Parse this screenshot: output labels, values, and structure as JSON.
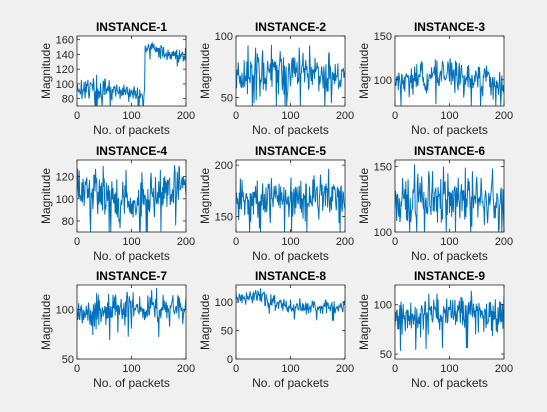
{
  "figure": {
    "background": "#f0f0f0",
    "axes_background": "#ffffff",
    "line_color": "#0072bd"
  },
  "chart_data": [
    {
      "type": "line",
      "title": "INSTANCE-1",
      "xlabel": "No. of packets",
      "ylabel": "Magnitude",
      "xlim": [
        0,
        200
      ],
      "ylim": [
        70,
        165
      ],
      "xticks": [
        0,
        100,
        200
      ],
      "yticks": [
        80,
        100,
        120,
        140,
        160
      ],
      "x_count": 201,
      "y_segments": [
        [
          0,
          95,
          18
        ],
        [
          30,
          93,
          18
        ],
        [
          60,
          90,
          16
        ],
        [
          90,
          88,
          15
        ],
        [
          120,
          82,
          14
        ],
        [
          130,
          150,
          10
        ],
        [
          160,
          142,
          10
        ],
        [
          200,
          138,
          10
        ]
      ]
    },
    {
      "type": "line",
      "title": "INSTANCE-2",
      "xlabel": "No. of packets",
      "ylabel": "Magnitude",
      "xlim": [
        0,
        200
      ],
      "ylim": [
        43,
        100
      ],
      "xticks": [
        0,
        100,
        200
      ],
      "yticks": [
        50,
        100
      ],
      "x_count": 201,
      "y_segments": [
        [
          0,
          68,
          22
        ],
        [
          100,
          72,
          22
        ],
        [
          200,
          68,
          22
        ]
      ]
    },
    {
      "type": "line",
      "title": "INSTANCE-3",
      "xlabel": "No. of packets",
      "ylabel": "Magnitude",
      "xlim": [
        0,
        200
      ],
      "ylim": [
        70,
        150
      ],
      "xticks": [
        0,
        100,
        200
      ],
      "yticks": [
        100,
        150
      ],
      "x_count": 201,
      "y_segments": [
        [
          0,
          98,
          18
        ],
        [
          100,
          105,
          20
        ],
        [
          200,
          95,
          18
        ]
      ]
    },
    {
      "type": "line",
      "title": "INSTANCE-4",
      "xlabel": "No. of packets",
      "ylabel": "Magnitude",
      "xlim": [
        0,
        200
      ],
      "ylim": [
        70,
        135
      ],
      "xticks": [
        0,
        100,
        200
      ],
      "yticks": [
        80,
        100,
        120
      ],
      "x_count": 201,
      "y_segments": [
        [
          0,
          108,
          22
        ],
        [
          100,
          98,
          24
        ],
        [
          200,
          115,
          22
        ]
      ]
    },
    {
      "type": "line",
      "title": "INSTANCE-5",
      "xlabel": "No. of packets",
      "ylabel": "Magnitude",
      "xlim": [
        0,
        200
      ],
      "ylim": [
        135,
        205
      ],
      "xticks": [
        0,
        100,
        200
      ],
      "yticks": [
        150,
        200
      ],
      "x_count": 201,
      "y_segments": [
        [
          0,
          168,
          24
        ],
        [
          100,
          170,
          26
        ],
        [
          200,
          168,
          24
        ]
      ]
    },
    {
      "type": "line",
      "title": "INSTANCE-6",
      "xlabel": "No. of packets",
      "ylabel": "Magnitude",
      "xlim": [
        0,
        200
      ],
      "ylim": [
        100,
        155
      ],
      "xticks": [
        0,
        100,
        200
      ],
      "yticks": [
        100,
        150
      ],
      "x_count": 201,
      "y_segments": [
        [
          0,
          122,
          22
        ],
        [
          100,
          128,
          26
        ],
        [
          200,
          125,
          22
        ]
      ]
    },
    {
      "type": "line",
      "title": "INSTANCE-7",
      "xlabel": "No. of packets",
      "ylabel": "Magnitude",
      "xlim": [
        0,
        200
      ],
      "ylim": [
        50,
        125
      ],
      "xticks": [
        0,
        100,
        200
      ],
      "yticks": [
        50,
        100
      ],
      "x_count": 201,
      "y_segments": [
        [
          0,
          95,
          20
        ],
        [
          100,
          102,
          18
        ],
        [
          200,
          100,
          18
        ]
      ]
    },
    {
      "type": "line",
      "title": "INSTANCE-8",
      "xlabel": "No. of packets",
      "ylabel": "Magnitude",
      "xlim": [
        0,
        200
      ],
      "ylim": [
        0,
        130
      ],
      "xticks": [
        0,
        100,
        200
      ],
      "yticks": [
        0,
        50,
        100
      ],
      "x_count": 201,
      "y_segments": [
        [
          0,
          105,
          18
        ],
        [
          50,
          108,
          16
        ],
        [
          100,
          92,
          14
        ],
        [
          200,
          92,
          16
        ]
      ]
    },
    {
      "type": "line",
      "title": "INSTANCE-9",
      "xlabel": "No. of packets",
      "ylabel": "Magnitude",
      "xlim": [
        0,
        200
      ],
      "ylim": [
        45,
        120
      ],
      "xticks": [
        0,
        100,
        200
      ],
      "yticks": [
        50,
        100
      ],
      "x_count": 201,
      "y_segments": [
        [
          0,
          88,
          22
        ],
        [
          100,
          92,
          22
        ],
        [
          200,
          90,
          22
        ]
      ]
    }
  ]
}
